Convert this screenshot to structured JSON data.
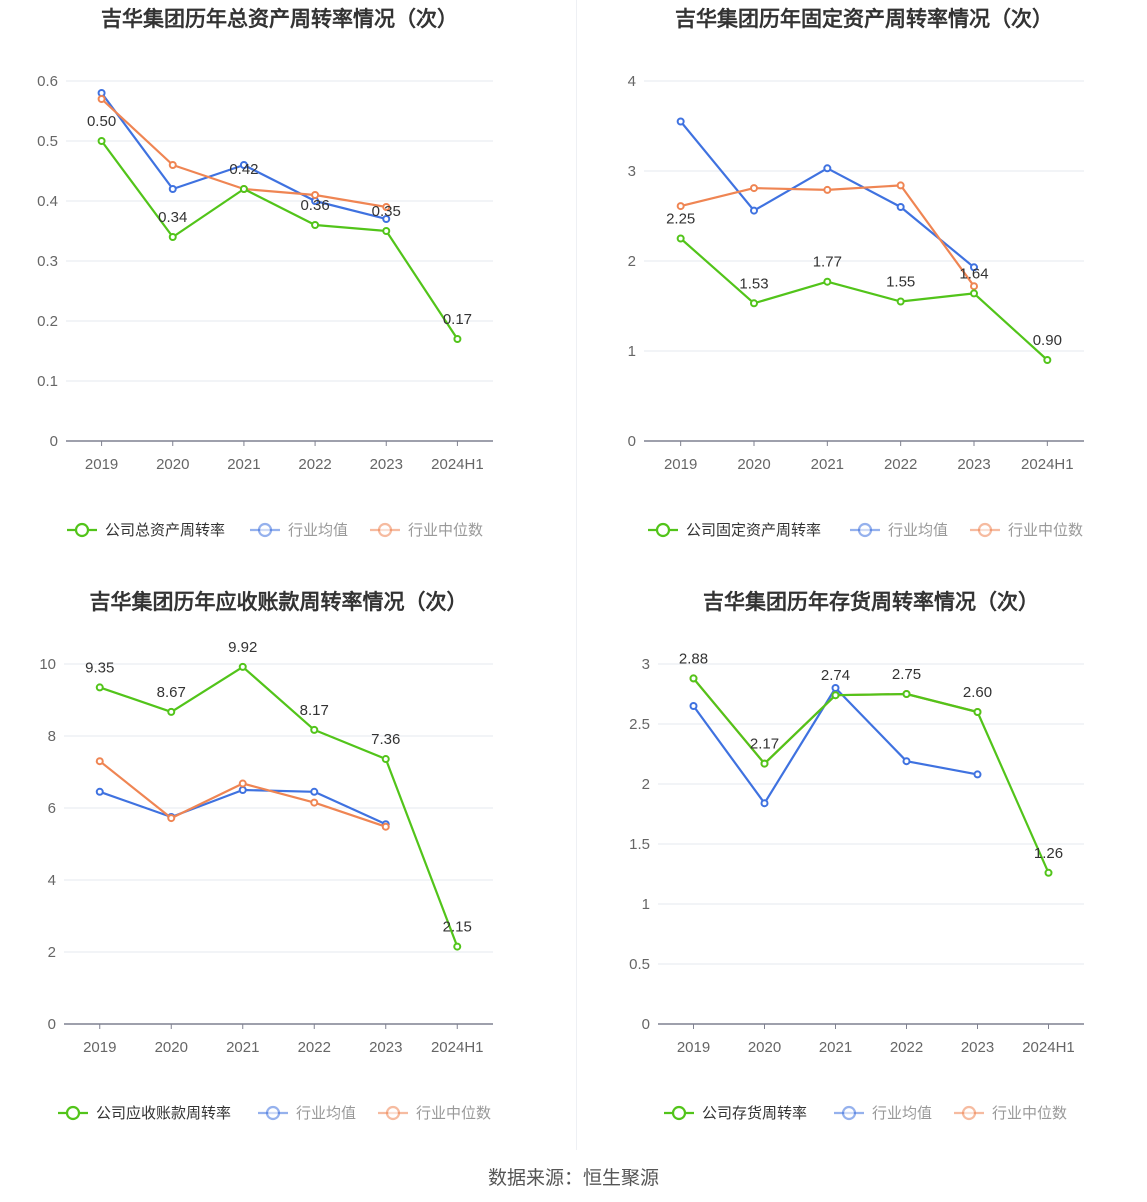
{
  "colors": {
    "company": "#52c41a",
    "avg": "#3f72e0",
    "median": "#ef8553",
    "grid": "#e6e8ef",
    "axis": "#7f8190",
    "tick": "#666666",
    "title": "#333333"
  },
  "legend": {
    "avg_label": "行业均值",
    "median_label": "行业中位数"
  },
  "footer": {
    "source": "数据来源：恒生聚源"
  },
  "chart_data": [
    {
      "type": "line",
      "title": "吉华集团历年总资产周转率情况（次）",
      "categories": [
        "2019",
        "2020",
        "2021",
        "2022",
        "2023",
        "2024H1"
      ],
      "ylim": [
        0,
        0.6
      ],
      "yticks": [
        "0",
        "0.1",
        "0.2",
        "0.3",
        "0.4",
        "0.5",
        "0.6"
      ],
      "legend_position": "bottom",
      "series": [
        {
          "name": "公司总资产周转率",
          "key": "company",
          "values": [
            0.5,
            0.34,
            0.42,
            0.36,
            0.35,
            0.17
          ],
          "labels": [
            "0.50",
            "0.34",
            "0.42",
            "0.36",
            "0.35",
            "0.17"
          ]
        },
        {
          "name": "行业均值",
          "key": "avg",
          "values": [
            0.58,
            0.42,
            0.46,
            0.4,
            0.37,
            null
          ]
        },
        {
          "name": "行业中位数",
          "key": "median",
          "values": [
            0.57,
            0.46,
            0.42,
            0.41,
            0.39,
            null
          ]
        }
      ]
    },
    {
      "type": "line",
      "title": "吉华集团历年固定资产周转率情况（次）",
      "categories": [
        "2019",
        "2020",
        "2021",
        "2022",
        "2023",
        "2024H1"
      ],
      "ylim": [
        0,
        4
      ],
      "yticks": [
        "0",
        "1",
        "2",
        "3",
        "4"
      ],
      "legend_position": "bottom",
      "series": [
        {
          "name": "公司固定资产周转率",
          "key": "company",
          "values": [
            2.25,
            1.53,
            1.77,
            1.55,
            1.64,
            0.9
          ],
          "labels": [
            "2.25",
            "1.53",
            "1.77",
            "1.55",
            "1.64",
            "0.90"
          ]
        },
        {
          "name": "行业均值",
          "key": "avg",
          "values": [
            3.55,
            2.56,
            3.03,
            2.6,
            1.93,
            null
          ]
        },
        {
          "name": "行业中位数",
          "key": "median",
          "values": [
            2.61,
            2.81,
            2.79,
            2.84,
            1.72,
            null
          ]
        }
      ]
    },
    {
      "type": "line",
      "title": "吉华集团历年应收账款周转率情况（次）",
      "categories": [
        "2019",
        "2020",
        "2021",
        "2022",
        "2023",
        "2024H1"
      ],
      "ylim": [
        0,
        10
      ],
      "yticks": [
        "0",
        "2",
        "4",
        "6",
        "8",
        "10"
      ],
      "legend_position": "bottom",
      "series": [
        {
          "name": "公司应收账款周转率",
          "key": "company",
          "values": [
            9.35,
            8.67,
            9.92,
            8.17,
            7.36,
            2.15
          ],
          "labels": [
            "9.35",
            "8.67",
            "9.92",
            "8.17",
            "7.36",
            "2.15"
          ]
        },
        {
          "name": "行业均值",
          "key": "avg",
          "values": [
            6.45,
            5.75,
            6.5,
            6.45,
            5.55,
            null
          ]
        },
        {
          "name": "行业中位数",
          "key": "median",
          "values": [
            7.3,
            5.72,
            6.68,
            6.15,
            5.48,
            null
          ]
        }
      ]
    },
    {
      "type": "line",
      "title": "吉华集团历年存货周转率情况（次）",
      "categories": [
        "2019",
        "2020",
        "2021",
        "2022",
        "2023",
        "2024H1"
      ],
      "ylim": [
        0,
        3
      ],
      "yticks": [
        "0",
        "0.5",
        "1",
        "1.5",
        "2",
        "2.5",
        "3"
      ],
      "legend_position": "bottom",
      "series": [
        {
          "name": "公司存货周转率",
          "key": "company",
          "values": [
            2.88,
            2.17,
            2.74,
            2.75,
            2.6,
            1.26
          ],
          "labels": [
            "2.88",
            "2.17",
            "2.74",
            "2.75",
            "2.60",
            "1.26"
          ]
        },
        {
          "name": "行业均值",
          "key": "avg",
          "values": [
            2.65,
            1.84,
            2.8,
            2.19,
            2.08,
            null
          ]
        },
        {
          "name": "行业中位数",
          "key": "median",
          "values": [
            2.88,
            2.17,
            2.74,
            2.75,
            2.6,
            null
          ]
        }
      ]
    }
  ]
}
